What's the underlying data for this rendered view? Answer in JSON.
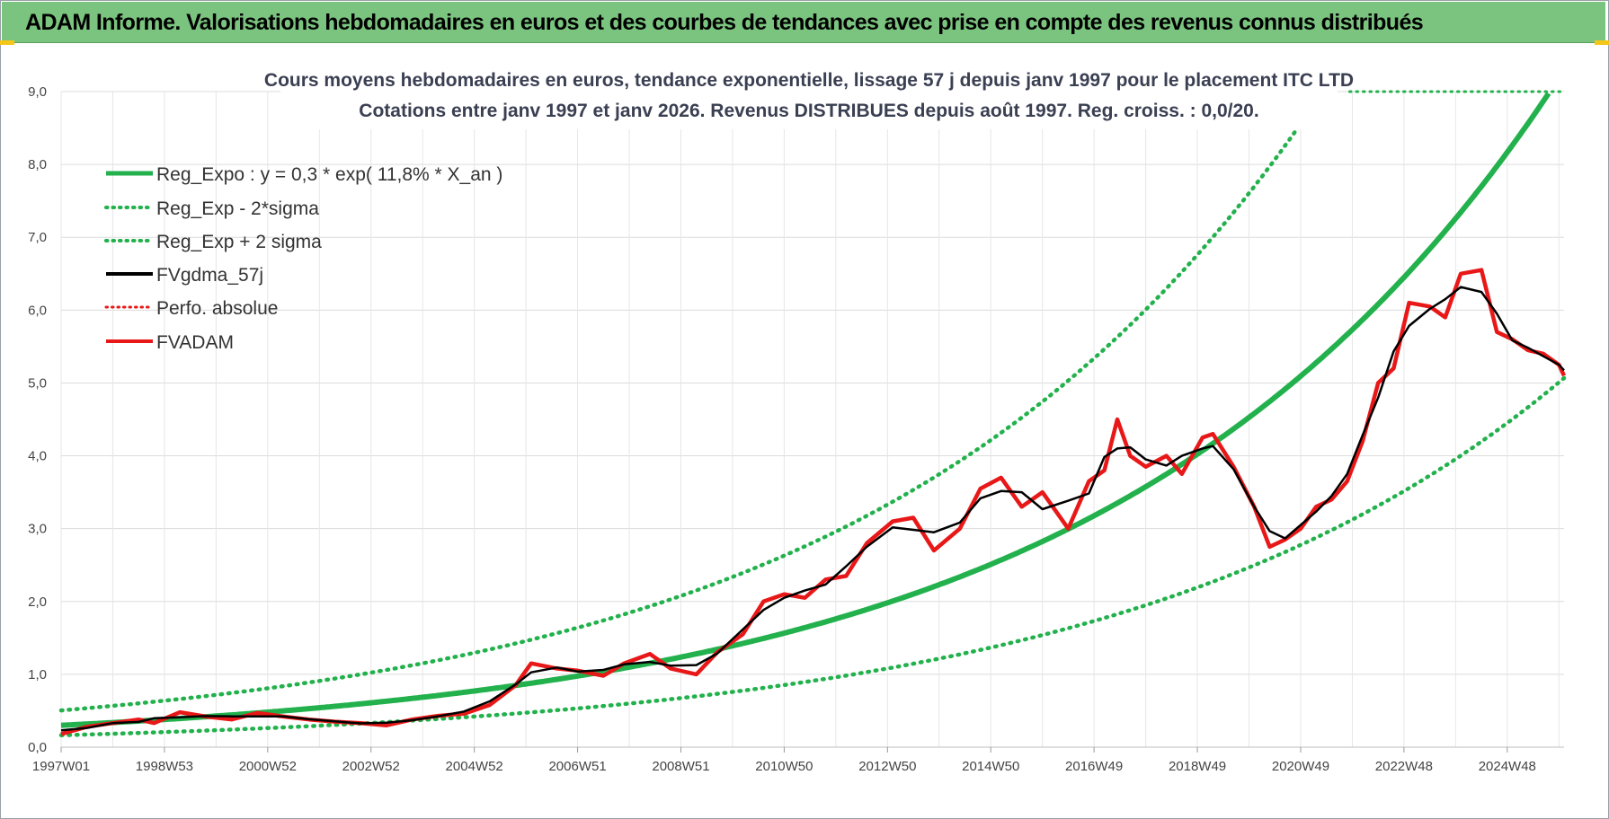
{
  "header": {
    "title": "ADAM Informe. Valorisations hebdomadaires en euros et des courbes de tendances avec prise en compte des revenus connus distribués"
  },
  "chart_data": {
    "type": "line",
    "title_line1": "Cours moyens hebdomadaires en euros, tendance exponentielle, lissage 57 j depuis janv 1997  pour le placement ITC LTD",
    "title_line2": "Cotations entre janv 1997 et janv 2026. Revenus DISTRIBUES depuis août 1997. Reg. croiss. : 0,0/20.",
    "x_range": [
      1997.0,
      2026.1
    ],
    "ylim": [
      0,
      9
    ],
    "grid": true,
    "legend_position": "top-left",
    "y_ticks": [
      "0,0",
      "1,0",
      "2,0",
      "3,0",
      "4,0",
      "5,0",
      "6,0",
      "7,0",
      "8,0",
      "9,0"
    ],
    "x_ticks": [
      {
        "label": "1997W01",
        "x": 1997.0
      },
      {
        "label": "1998W53",
        "x": 1999.0
      },
      {
        "label": "2000W52",
        "x": 2001.0
      },
      {
        "label": "2002W52",
        "x": 2003.0
      },
      {
        "label": "2004W52",
        "x": 2005.0
      },
      {
        "label": "2006W51",
        "x": 2007.0
      },
      {
        "label": "2008W51",
        "x": 2009.0
      },
      {
        "label": "2010W50",
        "x": 2011.0
      },
      {
        "label": "2012W50",
        "x": 2013.0
      },
      {
        "label": "2014W50",
        "x": 2015.0
      },
      {
        "label": "2016W49",
        "x": 2017.0
      },
      {
        "label": "2018W49",
        "x": 2019.0
      },
      {
        "label": "2020W49",
        "x": 2021.0
      },
      {
        "label": "2022W48",
        "x": 2023.0
      },
      {
        "label": "2024W48",
        "x": 2025.0
      }
    ],
    "regression": {
      "a": 0.3,
      "rate": 0.118,
      "sigma_low_factor": 0.545,
      "sigma_high_factor": 1.68
    },
    "legend": [
      {
        "label": "Reg_Expo : y = 0,3 * exp( 11,8% *  X_an )",
        "color": "#22b14c",
        "style": "solid"
      },
      {
        "label": "Reg_Exp - 2*sigma",
        "color": "#22b14c",
        "style": "dotted"
      },
      {
        "label": "Reg_Exp + 2 sigma",
        "color": "#22b14c",
        "style": "dotted"
      },
      {
        "label": "FVgdma_57j",
        "color": "#000000",
        "style": "solid"
      },
      {
        "label": "Perfo. absolue",
        "color": "#e81818",
        "style": "dotted"
      },
      {
        "label": "FVADAM",
        "color": "#e81818",
        "style": "solid"
      }
    ],
    "series": [
      {
        "name": "FVADAM",
        "x": [
          1997.0,
          1997.5,
          1998.0,
          1998.5,
          1998.8,
          1999.3,
          1999.8,
          2000.3,
          2000.8,
          2001.3,
          2001.8,
          2002.3,
          2002.8,
          2003.3,
          2003.8,
          2004.3,
          2004.8,
          2005.3,
          2005.8,
          2006.1,
          2006.6,
          2007.0,
          2007.5,
          2007.9,
          2008.4,
          2008.8,
          2009.3,
          2009.7,
          2010.2,
          2010.6,
          2011.0,
          2011.4,
          2011.8,
          2012.2,
          2012.6,
          2013.1,
          2013.5,
          2013.9,
          2014.4,
          2014.8,
          2015.2,
          2015.6,
          2016.0,
          2016.5,
          2016.9,
          2017.2,
          2017.45,
          2017.7,
          2018.0,
          2018.4,
          2018.7,
          2019.1,
          2019.3,
          2019.7,
          2020.1,
          2020.4,
          2020.7,
          2021.0,
          2021.3,
          2021.6,
          2021.9,
          2022.2,
          2022.5,
          2022.8,
          2023.1,
          2023.5,
          2023.8,
          2024.1,
          2024.5,
          2024.8,
          2025.1,
          2025.4,
          2025.7,
          2026.0,
          2026.1
        ],
        "values": [
          0.18,
          0.28,
          0.33,
          0.38,
          0.33,
          0.48,
          0.42,
          0.38,
          0.47,
          0.42,
          0.38,
          0.35,
          0.33,
          0.3,
          0.38,
          0.43,
          0.46,
          0.58,
          0.85,
          1.15,
          1.08,
          1.05,
          0.98,
          1.15,
          1.28,
          1.08,
          1.0,
          1.3,
          1.55,
          2.0,
          2.1,
          2.05,
          2.3,
          2.35,
          2.8,
          3.1,
          3.15,
          2.7,
          3.0,
          3.55,
          3.7,
          3.3,
          3.5,
          3.0,
          3.65,
          3.8,
          4.5,
          4.0,
          3.85,
          4.0,
          3.75,
          4.25,
          4.3,
          3.85,
          3.3,
          2.75,
          2.85,
          3.0,
          3.3,
          3.4,
          3.65,
          4.2,
          5.0,
          5.2,
          6.1,
          6.05,
          5.9,
          6.5,
          6.55,
          5.7,
          5.6,
          5.45,
          5.4,
          5.25,
          5.1
        ]
      }
    ]
  }
}
